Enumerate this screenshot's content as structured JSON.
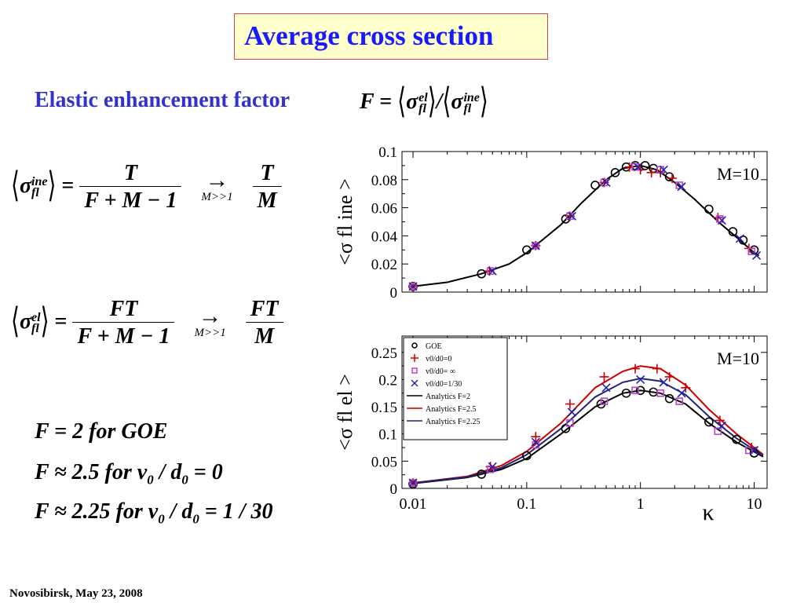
{
  "title": "Average cross section",
  "subtitle": "Elastic enhancement factor",
  "ratio_equation": {
    "lhs": "F =",
    "num_sym": "σ",
    "num_sup": "el",
    "num_sub": "fl",
    "slash": "/",
    "den_sym": "σ",
    "den_sup": "ine",
    "den_sub": "fl"
  },
  "eq_ine": {
    "sym": "σ",
    "sup": "ine",
    "sub": "fl",
    "equals": "=",
    "num": "T",
    "den": "F + M − 1",
    "arrow": "→",
    "limit": "M>>1",
    "limit_num": "T",
    "limit_den": "M"
  },
  "eq_el": {
    "sym": "σ",
    "sup": "el",
    "sub": "fl",
    "equals": "=",
    "num": "FT",
    "den": "F + M − 1",
    "arrow": "→",
    "limit": "M>>1",
    "limit_num": "FT",
    "limit_den": "M"
  },
  "results": [
    "F = 2  for  GOE",
    "F ≈ 2.5  for  v",
    "F ≈ 2.25  for  v"
  ],
  "results_detail": [
    {
      "prefix": "F = 2",
      "mid": " for  GOE",
      "tail": ""
    },
    {
      "prefix": "F ≈ 2.5",
      "mid": " for  v",
      "sub0": "0",
      "slash": " / d",
      "sub1": "0",
      "tail": " = 0"
    },
    {
      "prefix": "F ≈ 2.25",
      "mid": " for  v",
      "sub0": "0",
      "slash": " / d",
      "sub1": "0",
      "tail": " = 1 / 30"
    }
  ],
  "footer": "Novosibirsk,  May 23,  2008",
  "colors": {
    "title": "#1a1aff",
    "subtitle": "#3333cc",
    "title_bg": "#ffffcc",
    "title_border": "#e0405a"
  },
  "chart_data": [
    {
      "type": "scatter",
      "annotation": "M=10",
      "ylabel": "<σ fl ine >",
      "x_scale": "log",
      "xlim": [
        0.008,
        13
      ],
      "ylim": [
        0,
        0.1
      ],
      "yticks": [
        "0",
        "0.02",
        "0.04",
        "0.06",
        "0.08",
        "0.1"
      ],
      "ytick_values": [
        0,
        0.02,
        0.04,
        0.06,
        0.08,
        0.1
      ],
      "series": [
        {
          "name": "",
          "marker": "circle",
          "color": "#000000",
          "points": [
            [
              0.01,
              0.004
            ],
            [
              0.04,
              0.013
            ],
            [
              0.1,
              0.03
            ],
            [
              0.22,
              0.052
            ],
            [
              0.4,
              0.076
            ],
            [
              0.6,
              0.085
            ],
            [
              0.75,
              0.089
            ],
            [
              0.9,
              0.09
            ],
            [
              1.1,
              0.09
            ],
            [
              1.3,
              0.088
            ],
            [
              1.8,
              0.082
            ],
            [
              4.0,
              0.059
            ],
            [
              6.5,
              0.043
            ],
            [
              8.0,
              0.037
            ],
            [
              10.0,
              0.03
            ]
          ]
        },
        {
          "name": "",
          "marker": "plus",
          "color": "#cc0000",
          "points": [
            [
              0.01,
              0.004
            ],
            [
              0.047,
              0.015
            ],
            [
              0.12,
              0.033
            ],
            [
              0.24,
              0.054
            ],
            [
              0.48,
              0.078
            ],
            [
              0.8,
              0.089
            ],
            [
              1.0,
              0.087
            ],
            [
              1.25,
              0.085
            ],
            [
              1.5,
              0.085
            ],
            [
              1.9,
              0.081
            ],
            [
              4.8,
              0.053
            ],
            [
              9.0,
              0.031
            ]
          ]
        },
        {
          "name": "",
          "marker": "square",
          "color": "#bb44cc",
          "points": [
            [
              0.01,
              0.004
            ],
            [
              0.048,
              0.015
            ],
            [
              0.12,
              0.033
            ],
            [
              0.24,
              0.054
            ],
            [
              0.48,
              0.078
            ],
            [
              0.9,
              0.089
            ],
            [
              1.5,
              0.087
            ],
            [
              2.2,
              0.076
            ],
            [
              5.0,
              0.052
            ],
            [
              9.5,
              0.029
            ]
          ]
        },
        {
          "name": "",
          "marker": "x",
          "color": "#2222aa",
          "points": [
            [
              0.01,
              0.004
            ],
            [
              0.05,
              0.015
            ],
            [
              0.12,
              0.033
            ],
            [
              0.25,
              0.054
            ],
            [
              0.5,
              0.078
            ],
            [
              0.95,
              0.089
            ],
            [
              1.6,
              0.087
            ],
            [
              2.3,
              0.075
            ],
            [
              5.2,
              0.051
            ],
            [
              7.5,
              0.038
            ],
            [
              10.5,
              0.026
            ]
          ]
        }
      ],
      "curves": [
        {
          "name": "",
          "color": "#000000",
          "points": [
            [
              0.01,
              0.004
            ],
            [
              0.02,
              0.007
            ],
            [
              0.04,
              0.013
            ],
            [
              0.07,
              0.02
            ],
            [
              0.1,
              0.028
            ],
            [
              0.2,
              0.048
            ],
            [
              0.3,
              0.063
            ],
            [
              0.5,
              0.08
            ],
            [
              0.7,
              0.088
            ],
            [
              1.0,
              0.09
            ],
            [
              1.4,
              0.087
            ],
            [
              2.0,
              0.078
            ],
            [
              3.0,
              0.066
            ],
            [
              5.0,
              0.049
            ],
            [
              7.0,
              0.039
            ],
            [
              10.0,
              0.028
            ],
            [
              11.0,
              0.026
            ]
          ]
        }
      ]
    },
    {
      "type": "scatter",
      "annotation": "M=10",
      "xlabel": "κ",
      "ylabel": "<σ fl el >",
      "x_scale": "log",
      "xlim": [
        0.008,
        13
      ],
      "ylim": [
        0,
        0.28
      ],
      "xticks": [
        "0.01",
        "0.1",
        "1",
        "10"
      ],
      "xtick_values": [
        0.01,
        0.1,
        1,
        10
      ],
      "yticks": [
        "0",
        "0.05",
        "0.1",
        "0.15",
        "0.2",
        "0.25"
      ],
      "ytick_values": [
        0,
        0.05,
        0.1,
        0.15,
        0.2,
        0.25
      ],
      "legend": "top-left",
      "series": [
        {
          "name": "GOE",
          "marker": "circle",
          "color": "#000000",
          "points": [
            [
              0.01,
              0.008
            ],
            [
              0.04,
              0.026
            ],
            [
              0.1,
              0.06
            ],
            [
              0.22,
              0.11
            ],
            [
              0.45,
              0.155
            ],
            [
              0.75,
              0.175
            ],
            [
              1.0,
              0.18
            ],
            [
              1.3,
              0.177
            ],
            [
              1.8,
              0.165
            ],
            [
              4.0,
              0.122
            ],
            [
              7.0,
              0.09
            ],
            [
              10.0,
              0.065
            ]
          ]
        },
        {
          "name": "v0/d0=0",
          "marker": "plus",
          "color": "#cc0000",
          "points": [
            [
              0.01,
              0.01
            ],
            [
              0.048,
              0.04
            ],
            [
              0.12,
              0.095
            ],
            [
              0.24,
              0.155
            ],
            [
              0.48,
              0.205
            ],
            [
              0.9,
              0.22
            ],
            [
              1.4,
              0.22
            ],
            [
              1.8,
              0.205
            ],
            [
              2.5,
              0.185
            ],
            [
              5.0,
              0.125
            ],
            [
              9.5,
              0.075
            ]
          ]
        },
        {
          "name": "v0/d0= ∞",
          "marker": "square",
          "color": "#bb44cc",
          "points": [
            [
              0.01,
              0.01
            ],
            [
              0.048,
              0.035
            ],
            [
              0.12,
              0.08
            ],
            [
              0.24,
              0.12
            ],
            [
              0.48,
              0.16
            ],
            [
              0.9,
              0.18
            ],
            [
              1.5,
              0.175
            ],
            [
              2.2,
              0.16
            ],
            [
              4.8,
              0.105
            ],
            [
              9.0,
              0.07
            ]
          ]
        },
        {
          "name": "v0/d0=1/30",
          "marker": "x",
          "color": "#2222aa",
          "points": [
            [
              0.01,
              0.01
            ],
            [
              0.05,
              0.04
            ],
            [
              0.12,
              0.085
            ],
            [
              0.25,
              0.14
            ],
            [
              0.5,
              0.185
            ],
            [
              1.0,
              0.2
            ],
            [
              1.6,
              0.195
            ],
            [
              2.3,
              0.175
            ],
            [
              5.2,
              0.115
            ],
            [
              10.0,
              0.07
            ]
          ]
        }
      ],
      "curves": [
        {
          "name": "Analytics F=2",
          "color": "#000000",
          "points": [
            [
              0.01,
              0.009
            ],
            [
              0.03,
              0.02
            ],
            [
              0.06,
              0.035
            ],
            [
              0.1,
              0.055
            ],
            [
              0.2,
              0.1
            ],
            [
              0.4,
              0.15
            ],
            [
              0.7,
              0.175
            ],
            [
              1.0,
              0.18
            ],
            [
              1.5,
              0.175
            ],
            [
              2.5,
              0.155
            ],
            [
              4.0,
              0.12
            ],
            [
              7.0,
              0.085
            ],
            [
              12.0,
              0.058
            ]
          ]
        },
        {
          "name": "Analytics F=2.5",
          "color": "#cc0000",
          "points": [
            [
              0.01,
              0.01
            ],
            [
              0.03,
              0.022
            ],
            [
              0.06,
              0.042
            ],
            [
              0.1,
              0.068
            ],
            [
              0.2,
              0.12
            ],
            [
              0.4,
              0.185
            ],
            [
              0.7,
              0.215
            ],
            [
              1.0,
              0.225
            ],
            [
              1.5,
              0.22
            ],
            [
              2.5,
              0.19
            ],
            [
              4.0,
              0.145
            ],
            [
              7.0,
              0.1
            ],
            [
              12.0,
              0.062
            ]
          ]
        },
        {
          "name": "Analytics F=2.25",
          "color": "#222277",
          "points": [
            [
              0.01,
              0.01
            ],
            [
              0.03,
              0.021
            ],
            [
              0.06,
              0.038
            ],
            [
              0.1,
              0.062
            ],
            [
              0.2,
              0.11
            ],
            [
              0.4,
              0.168
            ],
            [
              0.7,
              0.195
            ],
            [
              1.0,
              0.202
            ],
            [
              1.5,
              0.197
            ],
            [
              2.5,
              0.172
            ],
            [
              4.0,
              0.132
            ],
            [
              7.0,
              0.092
            ],
            [
              12.0,
              0.06
            ]
          ]
        }
      ]
    }
  ]
}
